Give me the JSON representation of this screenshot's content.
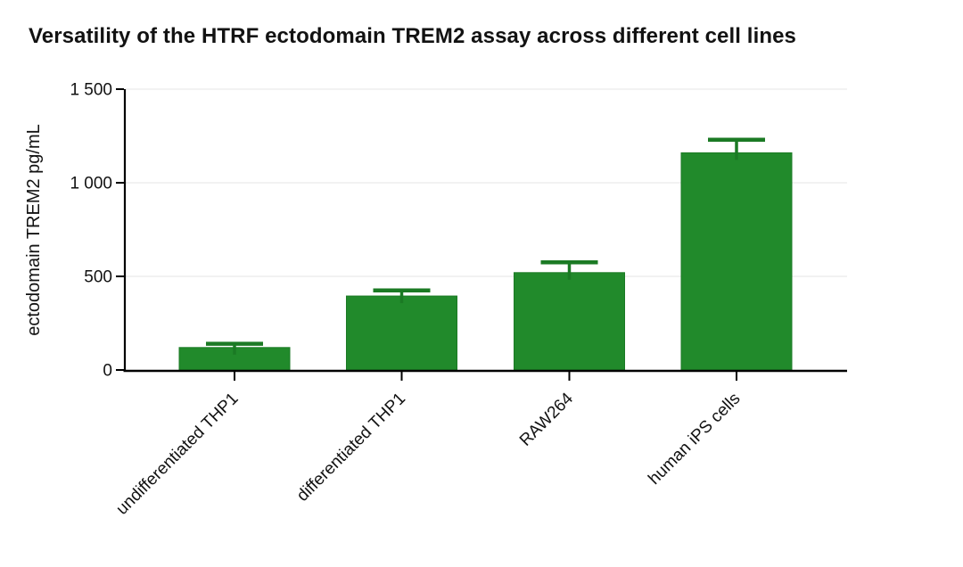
{
  "chart_data": {
    "type": "bar",
    "title": "Versatility of the HTRF ectodomain TREM2 assay across different cell lines",
    "xlabel": "",
    "ylabel": "ectodomain TREM2 pg/mL",
    "categories": [
      "undifferentiated THP1",
      "differentiated THP1",
      "RAW264",
      "human iPS cells"
    ],
    "values": [
      120,
      395,
      520,
      1160
    ],
    "error_plus": [
      20,
      30,
      55,
      70
    ],
    "ylim": [
      0,
      1500
    ],
    "yticks": [
      0,
      500,
      1000,
      1500
    ],
    "ytick_labels": [
      "0",
      "500",
      "1 000",
      "1 500"
    ],
    "grid": true,
    "legend": "none",
    "colors": {
      "bar_fill": "#218a2b",
      "bar_stroke": "#1b7a24",
      "error_bar": "#1b7a24",
      "grid_line": "#ededed",
      "axis_line": "#000000",
      "text": "#121212"
    }
  }
}
